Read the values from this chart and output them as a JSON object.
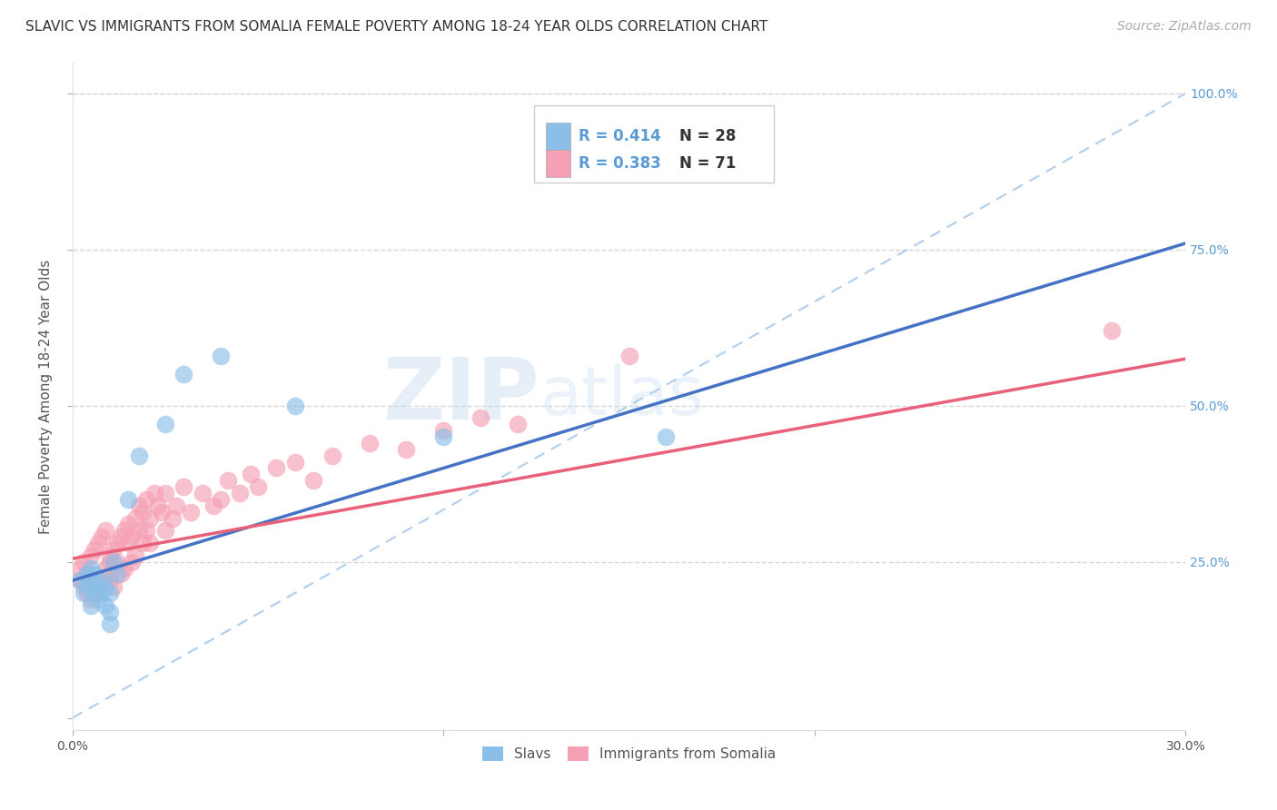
{
  "title": "SLAVIC VS IMMIGRANTS FROM SOMALIA FEMALE POVERTY AMONG 18-24 YEAR OLDS CORRELATION CHART",
  "source": "Source: ZipAtlas.com",
  "ylabel": "Female Poverty Among 18-24 Year Olds",
  "xlim": [
    0.0,
    0.3
  ],
  "ylim": [
    -0.02,
    1.05
  ],
  "yticks": [
    0.0,
    0.25,
    0.5,
    0.75,
    1.0
  ],
  "ytick_labels_left": [
    "",
    "25.0%",
    "50.0%",
    "75.0%",
    "100.0%"
  ],
  "ytick_labels_right": [
    "",
    "25.0%",
    "50.0%",
    "75.0%",
    "100.0%"
  ],
  "xticks": [
    0.0,
    0.1,
    0.2,
    0.3
  ],
  "xtick_labels": [
    "0.0%",
    "",
    "",
    "30.0%"
  ],
  "color_slavs": "#8BBFE8",
  "color_somalia": "#F5A0B5",
  "color_slavs_line": "#4472C4",
  "color_somalia_line": "#E8607A",
  "color_dashed_line": "#A8C8E8",
  "watermark_zip": "ZIP",
  "watermark_atlas": "atlas",
  "slavs_x": [
    0.002,
    0.003,
    0.004,
    0.004,
    0.005,
    0.005,
    0.005,
    0.006,
    0.006,
    0.007,
    0.007,
    0.008,
    0.008,
    0.009,
    0.009,
    0.01,
    0.01,
    0.01,
    0.011,
    0.012,
    0.015,
    0.018,
    0.025,
    0.03,
    0.04,
    0.06,
    0.1,
    0.16
  ],
  "slavs_y": [
    0.22,
    0.2,
    0.21,
    0.23,
    0.22,
    0.24,
    0.18,
    0.23,
    0.2,
    0.21,
    0.19,
    0.22,
    0.2,
    0.21,
    0.18,
    0.2,
    0.17,
    0.15,
    0.25,
    0.23,
    0.35,
    0.42,
    0.47,
    0.55,
    0.58,
    0.5,
    0.45,
    0.45
  ],
  "somalia_x": [
    0.002,
    0.002,
    0.003,
    0.003,
    0.004,
    0.004,
    0.005,
    0.005,
    0.005,
    0.006,
    0.006,
    0.007,
    0.007,
    0.008,
    0.008,
    0.009,
    0.009,
    0.01,
    0.01,
    0.01,
    0.01,
    0.011,
    0.011,
    0.012,
    0.012,
    0.013,
    0.013,
    0.014,
    0.014,
    0.015,
    0.015,
    0.016,
    0.016,
    0.017,
    0.017,
    0.018,
    0.018,
    0.019,
    0.019,
    0.02,
    0.02,
    0.021,
    0.021,
    0.022,
    0.023,
    0.024,
    0.025,
    0.025,
    0.027,
    0.028,
    0.03,
    0.032,
    0.035,
    0.038,
    0.04,
    0.042,
    0.045,
    0.048,
    0.05,
    0.055,
    0.06,
    0.065,
    0.07,
    0.08,
    0.09,
    0.1,
    0.11,
    0.12,
    0.15,
    0.28
  ],
  "somalia_y": [
    0.24,
    0.22,
    0.25,
    0.21,
    0.23,
    0.2,
    0.26,
    0.22,
    0.19,
    0.27,
    0.21,
    0.28,
    0.2,
    0.29,
    0.22,
    0.3,
    0.24,
    0.25,
    0.23,
    0.26,
    0.22,
    0.27,
    0.21,
    0.28,
    0.25,
    0.29,
    0.23,
    0.3,
    0.24,
    0.28,
    0.31,
    0.25,
    0.29,
    0.32,
    0.26,
    0.3,
    0.34,
    0.28,
    0.33,
    0.3,
    0.35,
    0.28,
    0.32,
    0.36,
    0.34,
    0.33,
    0.3,
    0.36,
    0.32,
    0.34,
    0.37,
    0.33,
    0.36,
    0.34,
    0.35,
    0.38,
    0.36,
    0.39,
    0.37,
    0.4,
    0.41,
    0.38,
    0.42,
    0.44,
    0.43,
    0.46,
    0.48,
    0.47,
    0.58,
    0.62
  ],
  "slavs_line_x0": 0.0,
  "slavs_line_y0": 0.22,
  "slavs_line_x1": 0.3,
  "slavs_line_y1": 0.76,
  "somalia_line_x0": 0.0,
  "somalia_line_y0": 0.255,
  "somalia_line_x1": 0.3,
  "somalia_line_y1": 0.575,
  "background_color": "#FFFFFF",
  "grid_color": "#CCCCCC",
  "title_fontsize": 11,
  "axis_label_fontsize": 11,
  "tick_fontsize": 10,
  "source_fontsize": 10
}
